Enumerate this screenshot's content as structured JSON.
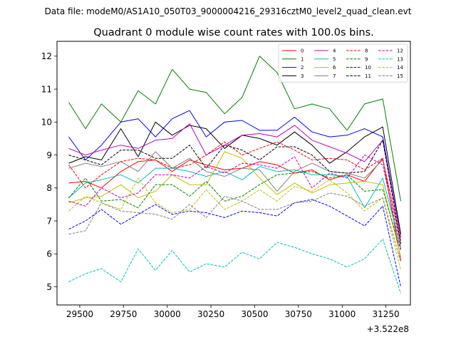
{
  "suptitle": "Data file: modeM0/AS1A10_050T03_9000004216_29316cztM0_level2_quad_clean.evt",
  "chart_data": {
    "type": "line",
    "title": "Quadrant 0 module wise count rates with 100.0s bins.",
    "xlabel": "",
    "ylabel": "",
    "x_offset_label": "+3.522e8",
    "xlim": [
      29370,
      31390
    ],
    "ylim": [
      4.45,
      12.45
    ],
    "xticks": [
      29500,
      29750,
      30000,
      30250,
      30500,
      30750,
      31000,
      31250
    ],
    "xtick_labels": [
      "29500",
      "29750",
      "30000",
      "30250",
      "30500",
      "30750",
      "31000",
      "31250"
    ],
    "yticks": [
      5,
      6,
      7,
      8,
      9,
      10,
      11,
      12
    ],
    "ytick_labels": [
      "5",
      "6",
      "7",
      "8",
      "9",
      "10",
      "11",
      "12"
    ],
    "x": [
      29437,
      29533,
      29624,
      29735,
      29834,
      29933,
      30028,
      30128,
      30223,
      30328,
      30428,
      30528,
      30628,
      30728,
      30828,
      30928,
      31028,
      31128,
      31232,
      31335
    ],
    "legend": {
      "placement": "top-right",
      "columns": 4
    },
    "series": [
      {
        "name": "0",
        "color": "#ff0000",
        "style": "solid",
        "values": [
          8.15,
          8.2,
          8.0,
          8.5,
          8.8,
          8.85,
          8.5,
          8.85,
          8.7,
          8.55,
          8.6,
          8.8,
          8.7,
          8.45,
          8.55,
          8.25,
          8.4,
          8.2,
          8.9,
          5.8
        ]
      },
      {
        "name": "1",
        "color": "#008000",
        "style": "solid",
        "values": [
          10.6,
          9.8,
          10.55,
          10.0,
          10.95,
          10.55,
          11.6,
          11.0,
          10.9,
          10.25,
          10.75,
          12.0,
          11.5,
          10.4,
          10.55,
          10.4,
          9.75,
          10.55,
          10.7,
          7.6
        ]
      },
      {
        "name": "2",
        "color": "#0000ff",
        "style": "solid",
        "values": [
          9.55,
          8.85,
          9.3,
          10.0,
          10.1,
          9.55,
          10.1,
          10.35,
          9.55,
          10.0,
          10.05,
          9.75,
          9.75,
          10.15,
          9.7,
          9.55,
          9.6,
          9.8,
          9.55,
          6.5
        ]
      },
      {
        "name": "3",
        "color": "#000000",
        "style": "solid",
        "values": [
          8.75,
          8.95,
          8.85,
          9.8,
          8.95,
          10.0,
          9.6,
          9.9,
          9.8,
          9.2,
          9.6,
          9.5,
          9.3,
          9.7,
          9.3,
          8.75,
          9.1,
          9.55,
          9.85,
          6.6
        ]
      },
      {
        "name": "4",
        "color": "#bf00bf",
        "style": "solid",
        "values": [
          9.2,
          9.0,
          9.15,
          9.3,
          9.2,
          9.45,
          9.5,
          9.95,
          9.0,
          9.3,
          9.6,
          9.65,
          9.55,
          9.9,
          9.45,
          9.25,
          9.05,
          8.8,
          9.45,
          6.5
        ]
      },
      {
        "name": "5",
        "color": "#00bfbf",
        "style": "solid",
        "values": [
          7.7,
          8.15,
          8.25,
          8.4,
          8.15,
          8.6,
          8.6,
          8.5,
          8.35,
          8.5,
          8.25,
          8.65,
          8.5,
          8.55,
          8.4,
          8.4,
          8.35,
          7.4,
          8.3,
          6.2
        ]
      },
      {
        "name": "6",
        "color": "#bfbf00",
        "style": "solid",
        "values": [
          7.55,
          7.7,
          7.75,
          8.1,
          7.7,
          7.9,
          8.4,
          8.1,
          8.1,
          9.1,
          8.9,
          8.3,
          7.8,
          8.15,
          7.85,
          8.1,
          8.15,
          8.2,
          8.1,
          5.9
        ]
      },
      {
        "name": "7",
        "color": "#808080",
        "style": "solid",
        "values": [
          8.6,
          8.75,
          8.65,
          8.8,
          8.5,
          9.1,
          8.6,
          8.9,
          8.5,
          8.35,
          8.6,
          8.55,
          7.9,
          8.5,
          8.75,
          8.5,
          8.45,
          8.3,
          8.85,
          6.4
        ]
      },
      {
        "name": "8",
        "color": "#ff0000",
        "style": "dashed",
        "values": [
          8.7,
          8.0,
          8.4,
          8.8,
          8.9,
          8.85,
          8.6,
          8.7,
          9.0,
          9.4,
          9.0,
          9.2,
          9.4,
          9.15,
          8.85,
          8.9,
          8.85,
          8.55,
          8.9,
          6.3
        ]
      },
      {
        "name": "9",
        "color": "#008000",
        "style": "dashed",
        "values": [
          7.7,
          8.3,
          7.6,
          7.65,
          7.4,
          8.1,
          8.1,
          7.75,
          8.2,
          7.6,
          7.75,
          8.1,
          8.4,
          8.45,
          8.5,
          8.3,
          8.4,
          7.9,
          7.95,
          6.1
        ]
      },
      {
        "name": "10",
        "color": "#0000ff",
        "style": "dashed",
        "values": [
          6.75,
          7.0,
          7.35,
          6.9,
          7.2,
          7.5,
          7.2,
          7.3,
          7.25,
          7.1,
          7.3,
          7.25,
          7.15,
          7.55,
          7.65,
          7.45,
          7.15,
          6.85,
          7.45,
          5.0
        ]
      },
      {
        "name": "11",
        "color": "#000000",
        "style": "dashed",
        "values": [
          9.0,
          8.85,
          8.7,
          9.15,
          9.15,
          8.9,
          8.9,
          9.3,
          8.6,
          9.3,
          9.15,
          8.85,
          9.25,
          9.25,
          9.0,
          8.5,
          8.45,
          8.5,
          9.45,
          6.3
        ]
      },
      {
        "name": "12",
        "color": "#bf00bf",
        "style": "dashed",
        "values": [
          7.6,
          7.45,
          8.0,
          7.7,
          7.85,
          8.4,
          8.4,
          8.3,
          8.65,
          8.45,
          8.75,
          8.7,
          8.6,
          8.95,
          8.0,
          8.45,
          8.3,
          9.0,
          8.7,
          6.15
        ]
      },
      {
        "name": "13",
        "color": "#00bfbf",
        "style": "dashed",
        "values": [
          5.15,
          5.4,
          5.55,
          5.15,
          6.15,
          5.5,
          6.1,
          5.45,
          5.7,
          5.6,
          6.05,
          5.85,
          6.35,
          6.2,
          6.0,
          5.85,
          5.6,
          5.85,
          6.45,
          4.8
        ]
      },
      {
        "name": "14",
        "color": "#bfbf00",
        "style": "dashed",
        "values": [
          7.3,
          7.75,
          7.55,
          7.35,
          8.3,
          7.55,
          7.25,
          7.35,
          7.95,
          7.35,
          7.6,
          7.95,
          7.6,
          8.05,
          7.9,
          8.25,
          7.85,
          7.3,
          7.7,
          5.5
        ]
      },
      {
        "name": "15",
        "color": "#808080",
        "style": "dashed",
        "values": [
          6.6,
          6.7,
          7.55,
          7.3,
          7.25,
          7.2,
          7.05,
          7.5,
          7.1,
          7.75,
          7.6,
          7.35,
          7.35,
          7.55,
          7.6,
          7.85,
          7.75,
          7.45,
          7.7,
          5.75
        ]
      }
    ]
  }
}
